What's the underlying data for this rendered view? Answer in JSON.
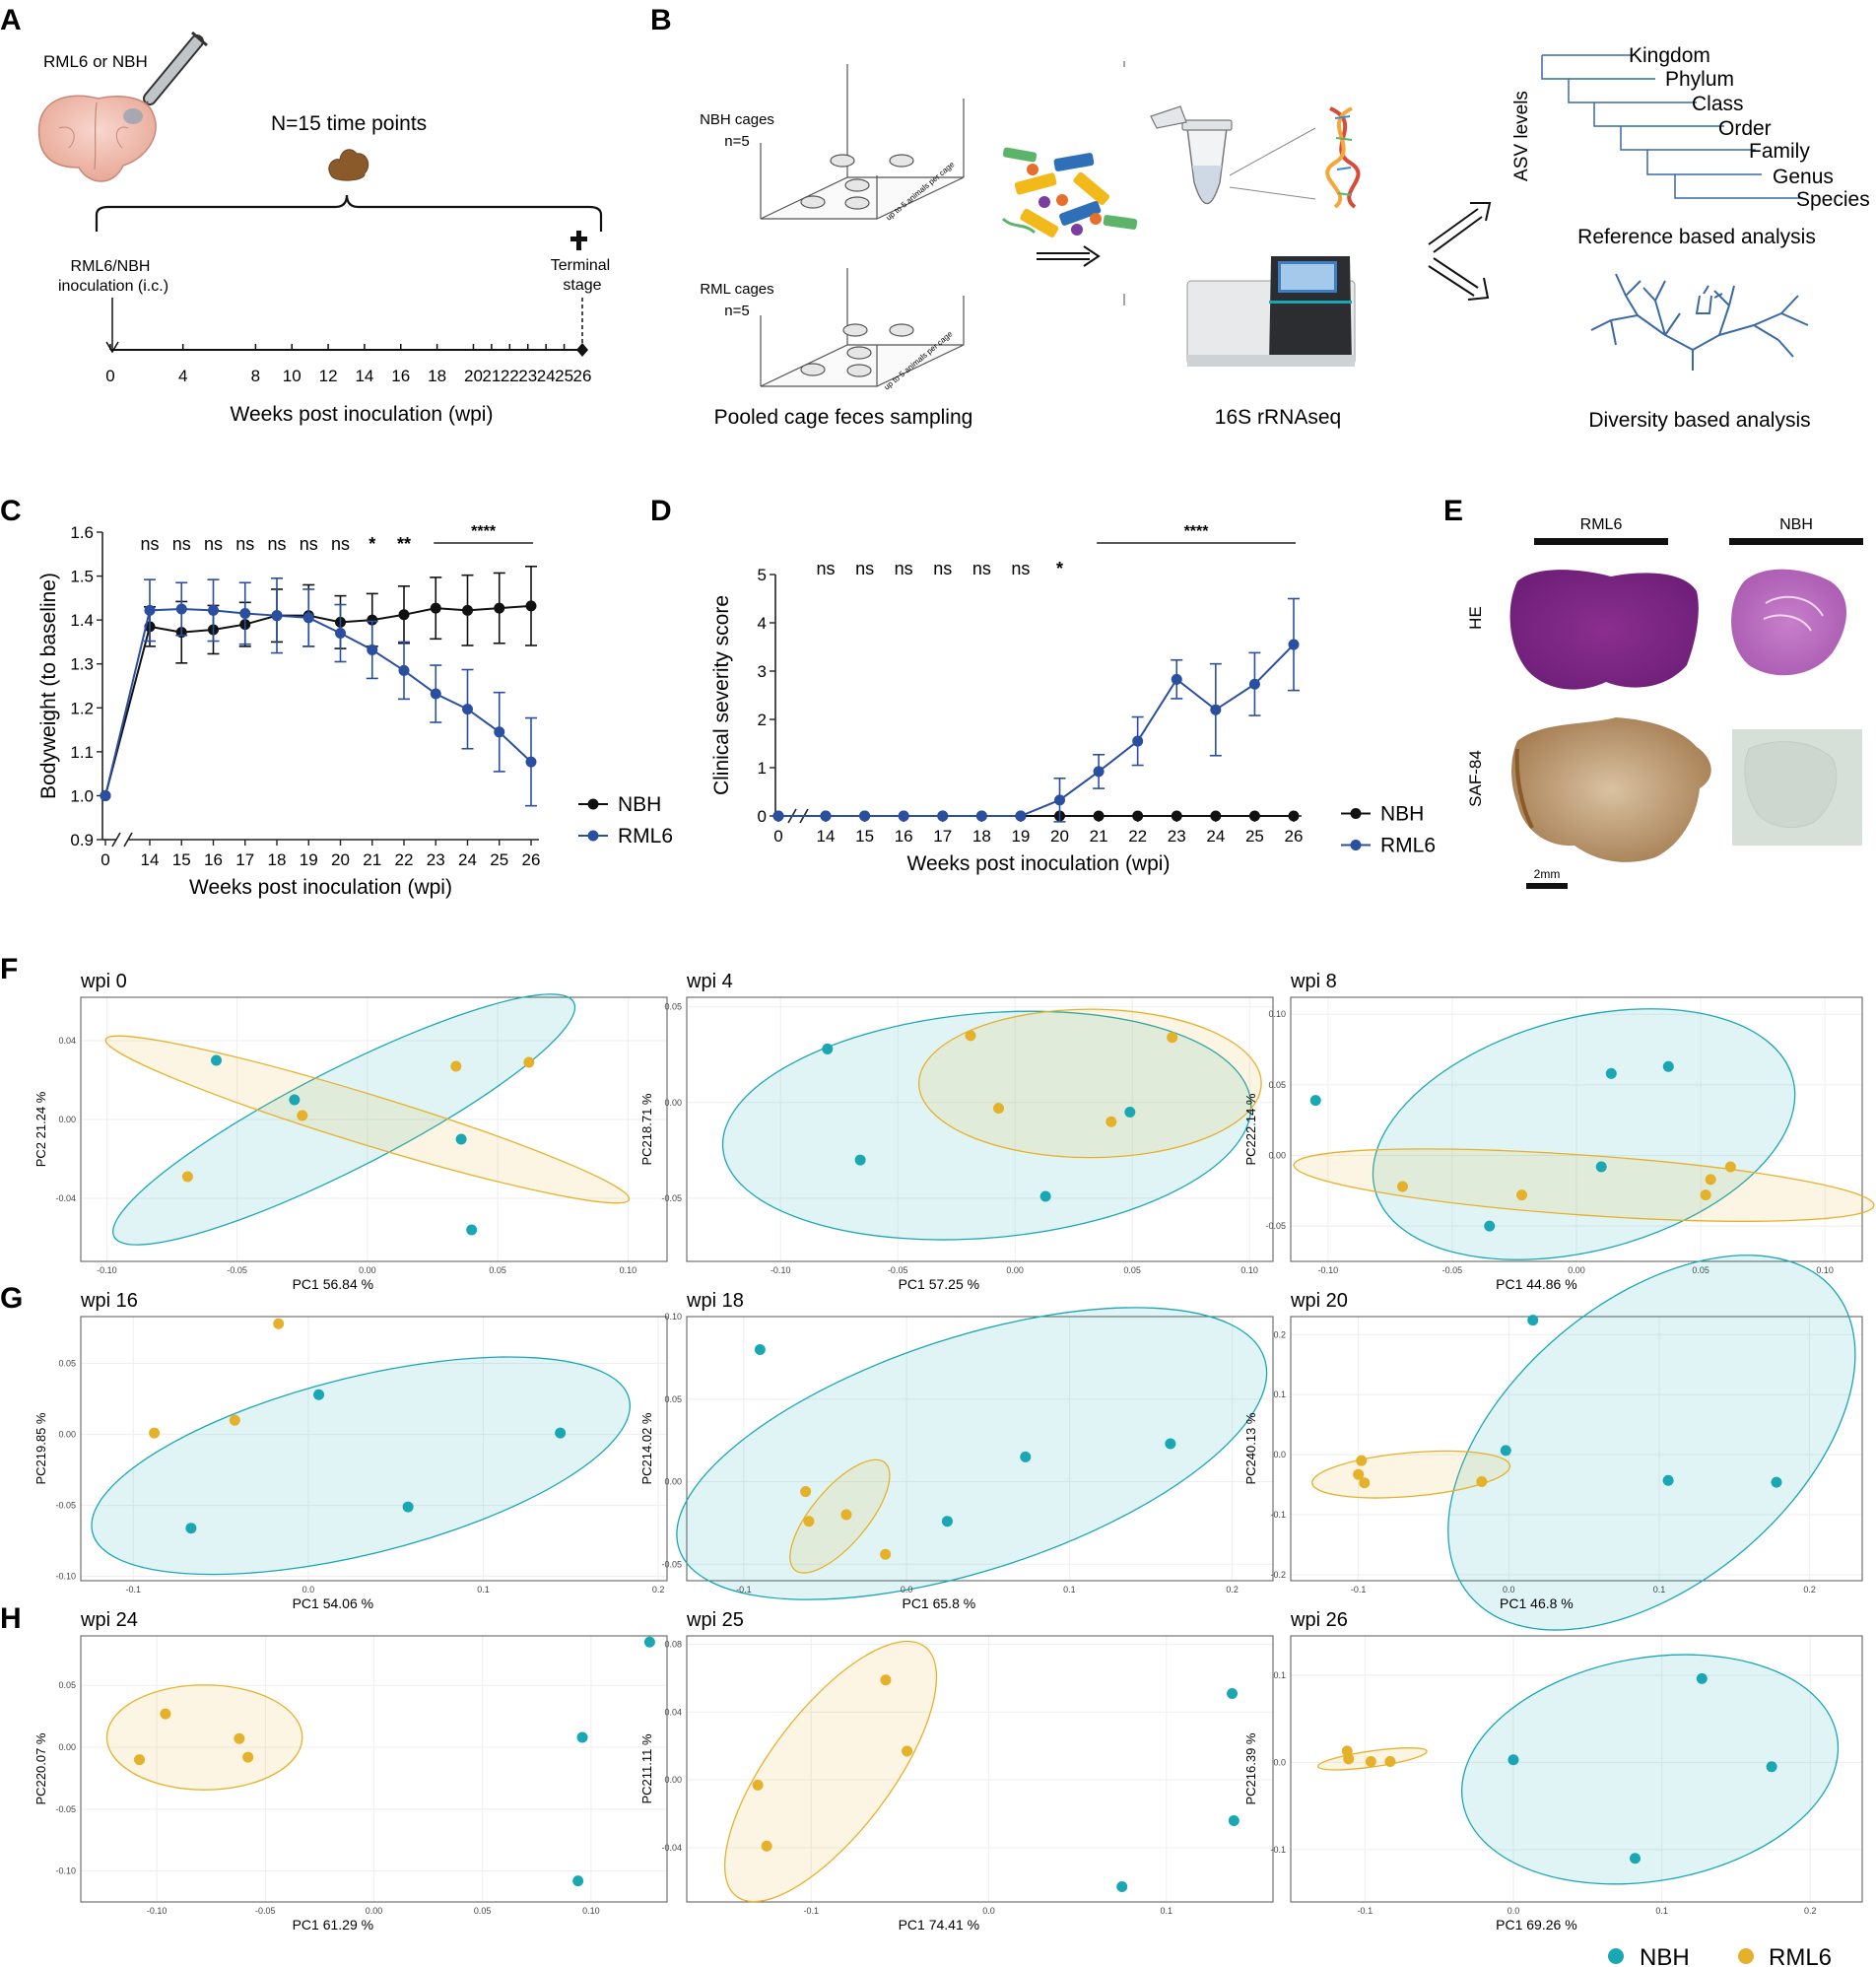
{
  "colors": {
    "nbh_pca": "#1aa7b4",
    "rml6_pca": "#e6b12a",
    "nbh_line": "#111111",
    "rml6_line": "#2b4fa0",
    "axis": "#222222",
    "tick": "#444444",
    "grid": "#eeeeee"
  },
  "panel_letters": {
    "a": "A",
    "b": "B",
    "c": "C",
    "d": "D",
    "e": "E",
    "f": "F",
    "g": "G",
    "h": "H"
  },
  "panel_a": {
    "inoculum_label": "RML6 or NBH",
    "time_points_label": "N=15 time points",
    "inoculation_label_1": "RML6/NBH",
    "inoculation_label_2": "inoculation (i.c.)",
    "terminal_label_1": "Terminal",
    "terminal_label_2": "stage",
    "ticks": [
      "0",
      "4",
      "8",
      "10",
      "12",
      "14",
      "16",
      "18",
      "20",
      "21",
      "22",
      "23",
      "24",
      "25",
      "26"
    ],
    "xlabel": "Weeks post inoculation (wpi)"
  },
  "panel_b": {
    "nbh_cages_1": "NBH cages",
    "nbh_cages_2": "n=5",
    "rml_cages_1": "RML cages",
    "rml_cages_2": "n=5",
    "cage_side_text": "up to 5 animals per cage",
    "sampling_label": "Pooled cage feces sampling",
    "seq_label": "16S rRNAseq",
    "asv_label": "ASV levels",
    "taxonomy": [
      "Kingdom",
      "Phylum",
      "Class",
      "Order",
      "Family",
      "Genus",
      "Species"
    ],
    "reference_label": "Reference based analysis",
    "diversity_label": "Diversity based analysis"
  },
  "panel_e": {
    "col_rml6": "RML6",
    "col_nbh": "NBH",
    "row_he": "HE",
    "row_saf": "SAF-84",
    "scale_bar": "2mm"
  },
  "legend_pca": {
    "nbh": "NBH",
    "rml6": "RML6"
  },
  "chart_data": [
    {
      "id": "C",
      "type": "line",
      "xlabel": "Weeks post inoculation (wpi)",
      "ylabel": "Bodyweight (to baseline)",
      "ylim": [
        0.9,
        1.6
      ],
      "yticks": [
        "0.9",
        "1.0",
        "1.1",
        "1.2",
        "1.3",
        "1.4",
        "1.5",
        "1.6"
      ],
      "categories": [
        "0",
        "14",
        "15",
        "16",
        "17",
        "18",
        "19",
        "20",
        "21",
        "22",
        "23",
        "24",
        "25",
        "26"
      ],
      "series": [
        {
          "name": "NBH",
          "values": [
            1.0,
            1.385,
            1.372,
            1.378,
            1.39,
            1.41,
            1.41,
            1.395,
            1.4,
            1.412,
            1.427,
            1.422,
            1.427,
            1.432
          ],
          "errors": [
            0,
            0.045,
            0.07,
            0.055,
            0.05,
            0.06,
            0.07,
            0.06,
            0.06,
            0.065,
            0.07,
            0.08,
            0.08,
            0.09
          ]
        },
        {
          "name": "RML6",
          "values": [
            1.0,
            1.422,
            1.425,
            1.422,
            1.415,
            1.41,
            1.405,
            1.37,
            1.332,
            1.285,
            1.232,
            1.197,
            1.145,
            1.077
          ],
          "errors": [
            0,
            0.07,
            0.06,
            0.07,
            0.07,
            0.085,
            0.065,
            0.065,
            0.065,
            0.065,
            0.065,
            0.09,
            0.09,
            0.1
          ]
        }
      ],
      "significance": [
        "ns",
        "ns",
        "ns",
        "ns",
        "ns",
        "ns",
        "ns",
        "*",
        "**"
      ],
      "significance_span": "****",
      "legend": [
        "NBH",
        "RML6"
      ]
    },
    {
      "id": "D",
      "type": "line",
      "xlabel": "Weeks post inoculation (wpi)",
      "ylabel": "Clinical severity score",
      "ylim": [
        0,
        5
      ],
      "yticks": [
        "0",
        "1",
        "2",
        "3",
        "4",
        "5"
      ],
      "categories": [
        "0",
        "14",
        "15",
        "16",
        "17",
        "18",
        "19",
        "20",
        "21",
        "22",
        "23",
        "24",
        "25",
        "26"
      ],
      "series": [
        {
          "name": "NBH",
          "values": [
            0,
            0,
            0,
            0,
            0,
            0,
            0,
            0,
            0,
            0,
            0,
            0,
            0,
            0
          ],
          "errors": [
            0,
            0,
            0,
            0,
            0,
            0,
            0,
            0,
            0,
            0,
            0,
            0,
            0,
            0
          ]
        },
        {
          "name": "RML6",
          "values": [
            0,
            0,
            0,
            0,
            0,
            0,
            0,
            0.33,
            0.92,
            1.55,
            2.83,
            2.2,
            2.73,
            3.55
          ],
          "errors": [
            0,
            0,
            0,
            0,
            0,
            0,
            0,
            0.45,
            0.35,
            0.5,
            0.4,
            0.95,
            0.65,
            0.95
          ]
        }
      ],
      "significance": [
        "ns",
        "ns",
        "ns",
        "ns",
        "ns",
        "ns",
        "*"
      ],
      "significance_span": "****",
      "legend": [
        "NBH",
        "RML6"
      ]
    },
    {
      "id": "wpi0",
      "type": "scatter",
      "title": "wpi 0",
      "xlabel": "PC1 56.84 %",
      "ylabel": "PC2 21.24 %",
      "xlim": [
        -0.11,
        0.115
      ],
      "ylim": [
        -0.072,
        0.062
      ],
      "xticks": [
        "-0.10",
        "-0.05",
        "0.00",
        "0.05",
        "0.10"
      ],
      "xtick_vals": [
        -0.1,
        -0.05,
        0.0,
        0.05,
        0.1
      ],
      "yticks": [
        "-0.04",
        "0.00",
        "0.04"
      ],
      "ytick_vals": [
        -0.04,
        0.0,
        0.04
      ],
      "nbh": [
        [
          -0.058,
          0.03
        ],
        [
          -0.028,
          0.01
        ],
        [
          0.036,
          -0.01
        ],
        [
          0.04,
          -0.056
        ]
      ],
      "rml6": [
        [
          -0.069,
          -0.029
        ],
        [
          -0.025,
          0.002
        ],
        [
          0.034,
          0.027
        ],
        [
          0.062,
          0.029
        ]
      ],
      "nbh_ellipse": {
        "cx": -0.009,
        "cy": 0.0,
        "rx": 0.099,
        "ry": 0.022,
        "angle": -27
      },
      "rml6_ellipse": {
        "cx": 0.0,
        "cy": 0.0,
        "rx": 0.105,
        "ry": 0.011,
        "angle": 17
      }
    },
    {
      "id": "wpi4",
      "type": "scatter",
      "title": "wpi 4",
      "xlabel": "PC1 57.25 %",
      "ylabel": "PC218.71 %",
      "xlim": [
        -0.14,
        0.11
      ],
      "ylim": [
        -0.083,
        0.055
      ],
      "xticks": [
        "-0.10",
        "-0.05",
        "0.00",
        "0.05",
        "0.10"
      ],
      "xtick_vals": [
        -0.1,
        -0.05,
        0.0,
        0.05,
        0.1
      ],
      "yticks": [
        "-0.05",
        "0.00",
        "0.05"
      ],
      "ytick_vals": [
        -0.05,
        0.0,
        0.05
      ],
      "nbh": [
        [
          -0.08,
          0.028
        ],
        [
          -0.066,
          -0.03
        ],
        [
          0.013,
          -0.049
        ],
        [
          0.049,
          -0.005
        ]
      ],
      "rml6": [
        [
          -0.019,
          0.035
        ],
        [
          -0.007,
          -0.003
        ],
        [
          0.041,
          -0.01
        ],
        [
          0.067,
          0.034
        ]
      ],
      "nbh_ellipse": {
        "cx": -0.012,
        "cy": -0.012,
        "rx": 0.113,
        "ry": 0.053,
        "angle": -5
      },
      "rml6_ellipse": {
        "cx": 0.032,
        "cy": 0.01,
        "rx": 0.073,
        "ry": 0.035,
        "angle": 0
      }
    },
    {
      "id": "wpi8",
      "type": "scatter",
      "title": "wpi 8",
      "xlabel": "PC1 44.86 %",
      "ylabel": "PC222.14 %",
      "xlim": [
        -0.115,
        0.115
      ],
      "ylim": [
        -0.075,
        0.112
      ],
      "xticks": [
        "-0.10",
        "-0.05",
        "0.00",
        "0.05",
        "0.10"
      ],
      "xtick_vals": [
        -0.1,
        -0.05,
        0.0,
        0.05,
        0.1
      ],
      "yticks": [
        "-0.05",
        "0.00",
        "0.05",
        "0.10"
      ],
      "ytick_vals": [
        -0.05,
        0.0,
        0.05,
        0.1
      ],
      "nbh": [
        [
          -0.105,
          0.039
        ],
        [
          -0.035,
          -0.05
        ],
        [
          0.01,
          -0.008
        ],
        [
          0.014,
          0.058
        ],
        [
          0.037,
          0.063
        ]
      ],
      "rml6": [
        [
          -0.07,
          -0.022
        ],
        [
          -0.022,
          -0.028
        ],
        [
          0.052,
          -0.028
        ],
        [
          0.054,
          -0.017
        ],
        [
          0.062,
          -0.008
        ]
      ],
      "nbh_ellipse": {
        "cx": 0.003,
        "cy": 0.015,
        "rx": 0.087,
        "ry": 0.062,
        "angle": -15
      },
      "rml6_ellipse": {
        "cx": 0.003,
        "cy": -0.021,
        "rx": 0.117,
        "ry": 0.016,
        "angle": 4
      }
    },
    {
      "id": "wpi16",
      "type": "scatter",
      "title": "wpi 16",
      "xlabel": "PC1 54.06 %",
      "ylabel": "PC219.85 %",
      "xlim": [
        -0.13,
        0.205
      ],
      "ylim": [
        -0.103,
        0.083
      ],
      "xticks": [
        "-0.1",
        "0.0",
        "0.1",
        "0.2"
      ],
      "xtick_vals": [
        -0.1,
        0.0,
        0.1,
        0.2
      ],
      "yticks": [
        "-0.10",
        "-0.05",
        "0.00",
        "0.05"
      ],
      "ytick_vals": [
        -0.1,
        -0.05,
        0.0,
        0.05
      ],
      "nbh": [
        [
          -0.067,
          -0.066
        ],
        [
          0.006,
          0.028
        ],
        [
          0.057,
          -0.051
        ],
        [
          0.144,
          0.001
        ]
      ],
      "rml6": [
        [
          -0.088,
          0.001
        ],
        [
          -0.042,
          0.01
        ],
        [
          -0.017,
          0.078
        ]
      ],
      "nbh_ellipse": {
        "cx": 0.03,
        "cy": -0.022,
        "rx": 0.158,
        "ry": 0.056,
        "angle": -14
      },
      "rml6_ellipse": null
    },
    {
      "id": "wpi18",
      "type": "scatter",
      "title": "wpi 18",
      "xlabel": "PC1 65.8 %",
      "ylabel": "PC214.02 %",
      "xlim": [
        -0.135,
        0.225
      ],
      "ylim": [
        -0.06,
        0.1
      ],
      "xticks": [
        "-0.1",
        "0.0",
        "0.1",
        "0.2"
      ],
      "xtick_vals": [
        -0.1,
        0.0,
        0.1,
        0.2
      ],
      "yticks": [
        "-0.05",
        "0.00",
        "0.05",
        "0.10"
      ],
      "ytick_vals": [
        -0.05,
        0.0,
        0.05,
        0.1
      ],
      "nbh": [
        [
          -0.09,
          0.08
        ],
        [
          0.025,
          -0.024
        ],
        [
          0.073,
          0.015
        ],
        [
          0.162,
          0.023
        ]
      ],
      "rml6": [
        [
          -0.062,
          -0.006
        ],
        [
          -0.06,
          -0.024
        ],
        [
          -0.037,
          -0.02
        ],
        [
          -0.013,
          -0.044
        ]
      ],
      "nbh_ellipse": {
        "cx": 0.04,
        "cy": 0.017,
        "rx": 0.189,
        "ry": 0.071,
        "angle": -18
      },
      "rml6_ellipse": {
        "cx": -0.041,
        "cy": -0.021,
        "rx": 0.043,
        "ry": 0.017,
        "angle": -50
      }
    },
    {
      "id": "wpi20",
      "type": "scatter",
      "title": "wpi 20",
      "xlabel": "PC1 46.8 %",
      "ylabel": "PC240.13 %",
      "xlim": [
        -0.145,
        0.235
      ],
      "ylim": [
        -0.21,
        0.23
      ],
      "xticks": [
        "-0.1",
        "0.0",
        "0.1",
        "0.2"
      ],
      "xtick_vals": [
        -0.1,
        0.0,
        0.1,
        0.2
      ],
      "yticks": [
        "-0.2",
        "-0.1",
        "0.0",
        "0.1",
        "0.2"
      ],
      "ytick_vals": [
        -0.2,
        -0.1,
        0.0,
        0.1,
        0.2
      ],
      "nbh": [
        [
          -0.002,
          0.007
        ],
        [
          0.016,
          0.224
        ],
        [
          0.106,
          -0.043
        ],
        [
          0.178,
          -0.046
        ]
      ],
      "rml6": [
        [
          -0.1,
          -0.033
        ],
        [
          -0.098,
          -0.01
        ],
        [
          -0.096,
          -0.047
        ],
        [
          -0.018,
          -0.045
        ]
      ],
      "nbh_ellipse": {
        "cx": 0.095,
        "cy": 0.02,
        "rx": 0.158,
        "ry": 0.149,
        "angle": -40
      },
      "rml6_ellipse": {
        "cx": -0.065,
        "cy": -0.033,
        "rx": 0.066,
        "ry": 0.023,
        "angle": -5
      }
    },
    {
      "id": "wpi24",
      "type": "scatter",
      "title": "wpi 24",
      "xlabel": "PC1 61.29 %",
      "ylabel": "PC220.07 %",
      "xlim": [
        -0.135,
        0.135
      ],
      "ylim": [
        -0.125,
        0.09
      ],
      "xticks": [
        "-0.10",
        "-0.05",
        "0.00",
        "0.05",
        "0.10"
      ],
      "xtick_vals": [
        -0.1,
        -0.05,
        0.0,
        0.05,
        0.1
      ],
      "yticks": [
        "-0.10",
        "-0.05",
        "0.00",
        "0.05"
      ],
      "ytick_vals": [
        -0.1,
        -0.05,
        0.0,
        0.05
      ],
      "nbh": [
        [
          0.094,
          -0.108
        ],
        [
          0.096,
          0.008
        ],
        [
          0.127,
          0.085
        ]
      ],
      "rml6": [
        [
          -0.108,
          -0.01
        ],
        [
          -0.096,
          0.027
        ],
        [
          -0.062,
          0.007
        ],
        [
          -0.058,
          -0.008
        ]
      ],
      "nbh_ellipse": null,
      "rml6_ellipse": {
        "cx": -0.078,
        "cy": 0.008,
        "rx": 0.045,
        "ry": 0.032,
        "angle": 0
      }
    },
    {
      "id": "wpi25",
      "type": "scatter",
      "title": "wpi 25",
      "xlabel": "PC1 74.41 %",
      "ylabel": "PC211.11 %",
      "xlim": [
        -0.17,
        0.16
      ],
      "ylim": [
        -0.072,
        0.085
      ],
      "xticks": [
        "-0.1",
        "0.0",
        "0.1"
      ],
      "xtick_vals": [
        -0.1,
        0.0,
        0.1
      ],
      "yticks": [
        "-0.04",
        "0.00",
        "0.04",
        "0.08"
      ],
      "ytick_vals": [
        -0.04,
        0.0,
        0.04,
        0.08
      ],
      "nbh": [
        [
          0.075,
          -0.063
        ],
        [
          0.137,
          0.051
        ],
        [
          0.138,
          -0.024
        ]
      ],
      "rml6": [
        [
          -0.13,
          -0.003
        ],
        [
          -0.125,
          -0.039
        ],
        [
          -0.058,
          0.059
        ],
        [
          -0.046,
          0.017
        ]
      ],
      "nbh_ellipse": null,
      "rml6_ellipse": {
        "cx": -0.089,
        "cy": 0.005,
        "rx": 0.088,
        "ry": 0.035,
        "angle": -53
      }
    },
    {
      "id": "wpi26",
      "type": "scatter",
      "title": "wpi 26",
      "xlabel": "PC1 69.26 %",
      "ylabel": "PC216.39 %",
      "xlim": [
        -0.15,
        0.235
      ],
      "ylim": [
        -0.16,
        0.145
      ],
      "xticks": [
        "-0.1",
        "0.0",
        "0.1",
        "0.2"
      ],
      "xtick_vals": [
        -0.1,
        0.0,
        0.1,
        0.2
      ],
      "yticks": [
        "-0.1",
        "0.0",
        "0.1"
      ],
      "ytick_vals": [
        -0.1,
        0.0,
        0.1
      ],
      "nbh": [
        [
          0.0,
          0.003
        ],
        [
          0.082,
          -0.11
        ],
        [
          0.127,
          0.096
        ],
        [
          0.174,
          -0.005
        ]
      ],
      "rml6": [
        [
          -0.112,
          0.013
        ],
        [
          -0.111,
          0.004
        ],
        [
          -0.096,
          0.001
        ],
        [
          -0.083,
          0.001
        ]
      ],
      "nbh_ellipse": {
        "cx": 0.092,
        "cy": -0.008,
        "rx": 0.128,
        "ry": 0.098,
        "angle": -10
      },
      "rml6_ellipse": {
        "cx": -0.095,
        "cy": 0.004,
        "rx": 0.037,
        "ry": 0.007,
        "angle": -8
      }
    }
  ]
}
